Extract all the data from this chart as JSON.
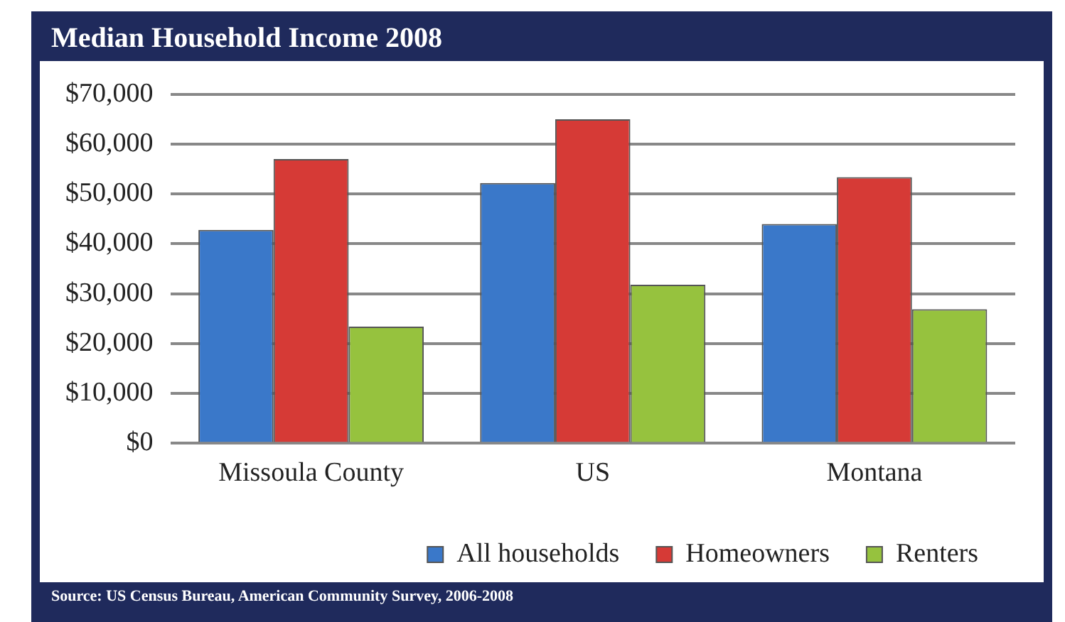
{
  "chart_data": {
    "type": "bar",
    "title": "Median Household Income 2008",
    "categories": [
      "Missoula County",
      "US",
      "Montana"
    ],
    "series": [
      {
        "name": "All households",
        "color": "#3a78c9",
        "values": [
          42800,
          52200,
          44000
        ]
      },
      {
        "name": "Homeowners",
        "color": "#d63a36",
        "values": [
          57000,
          65000,
          53400
        ]
      },
      {
        "name": "Renters",
        "color": "#96c23e",
        "values": [
          23400,
          31800,
          26900
        ]
      }
    ],
    "ylim": [
      0,
      70000
    ],
    "yticks": [
      {
        "value": 0,
        "label": "$0"
      },
      {
        "value": 10000,
        "label": "$10,000"
      },
      {
        "value": 20000,
        "label": "$20,000"
      },
      {
        "value": 30000,
        "label": "$30,000"
      },
      {
        "value": 40000,
        "label": "$40,000"
      },
      {
        "value": 50000,
        "label": "$50,000"
      },
      {
        "value": 60000,
        "label": "$60,000"
      },
      {
        "value": 70000,
        "label": "$70,000"
      }
    ],
    "grid": "y",
    "legend": "bottom",
    "annotations": [
      "Source: US Census Bureau, American Community Survey, 2006-2008"
    ]
  }
}
